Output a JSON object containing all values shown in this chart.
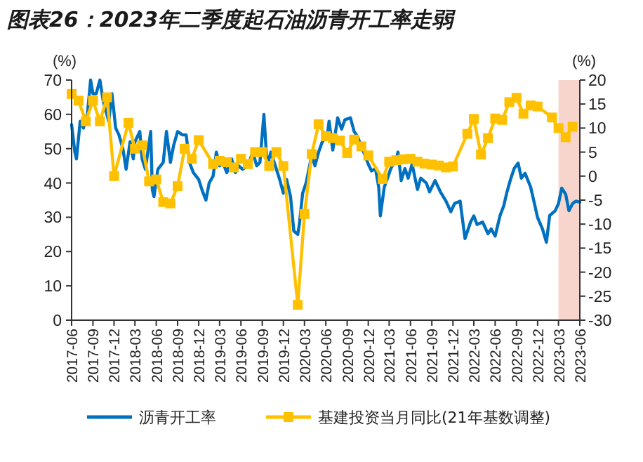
{
  "chart_data": {
    "type": "line",
    "title": "图表26：2023年二季度起石油沥青开工率走弱",
    "ylabel": "(%)",
    "y2label": "(%)",
    "xlim": [
      "2017-06",
      "2023-06"
    ],
    "xticks": [
      "2017-06",
      "2017-09",
      "2017-12",
      "2018-03",
      "2018-06",
      "2018-09",
      "2018-12",
      "2019-03",
      "2019-06",
      "2019-09",
      "2019-12",
      "2020-03",
      "2020-06",
      "2020-09",
      "2020-12",
      "2021-03",
      "2021-06",
      "2021-09",
      "2021-12",
      "2022-03",
      "2022-06",
      "2022-09",
      "2022-12",
      "2023-03",
      "2023-06"
    ],
    "ylim": [
      0,
      70
    ],
    "yticks": [
      0,
      10,
      20,
      30,
      40,
      50,
      60,
      70
    ],
    "y2lim": [
      -30,
      20
    ],
    "y2ticks": [
      -30,
      -25,
      -20,
      -15,
      -10,
      -5,
      0,
      5,
      10,
      15,
      20
    ],
    "grid": false,
    "legend": "bottom",
    "bands": [
      {
        "axis": "x",
        "from": "2023-03",
        "to": "2023-06",
        "color": "#f8d5cc"
      }
    ],
    "series": [
      {
        "name": "沥青开工率",
        "color": "#0070c0",
        "marker": "none",
        "x": [
          "2017-06-01",
          "2017-06-15",
          "2017-06-22",
          "2017-07-08",
          "2017-07-22",
          "2017-08-08",
          "2017-08-22",
          "2017-09-01",
          "2017-09-15",
          "2017-10-01",
          "2017-10-15",
          "2017-11-08",
          "2017-11-22",
          "2017-12-08",
          "2017-12-22",
          "2018-01-08",
          "2018-01-22",
          "2018-02-08",
          "2018-02-22",
          "2018-03-01",
          "2018-03-22",
          "2018-04-01",
          "2018-04-15",
          "2018-05-08",
          "2018-05-15",
          "2018-05-22",
          "2018-06-08",
          "2018-07-01",
          "2018-07-15",
          "2018-08-01",
          "2018-08-15",
          "2018-09-01",
          "2018-09-22",
          "2018-10-08",
          "2018-10-22",
          "2018-11-08",
          "2018-12-01",
          "2018-12-15",
          "2019-01-01",
          "2019-01-15",
          "2019-02-01",
          "2019-02-15",
          "2019-03-01",
          "2019-03-15",
          "2019-04-01",
          "2019-04-22",
          "2019-05-08",
          "2019-05-22",
          "2019-06-08",
          "2019-07-01",
          "2019-07-22",
          "2019-08-08",
          "2019-08-22",
          "2019-09-08",
          "2019-09-22",
          "2019-10-08",
          "2019-11-01",
          "2019-11-15",
          "2019-12-01",
          "2019-12-15",
          "2020-01-01",
          "2020-01-15",
          "2020-02-01",
          "2020-02-08",
          "2020-02-22",
          "2020-03-08",
          "2020-04-01",
          "2020-04-15",
          "2020-05-01",
          "2020-05-15",
          "2020-06-08",
          "2020-06-15",
          "2020-07-01",
          "2020-07-22",
          "2020-08-08",
          "2020-08-22",
          "2020-09-15",
          "2020-10-01",
          "2020-10-15",
          "2020-11-15",
          "2020-12-01",
          "2020-12-15",
          "2021-01-01",
          "2021-01-15",
          "2021-01-22",
          "2021-02-08",
          "2021-02-22",
          "2021-03-08",
          "2021-04-01",
          "2021-04-08",
          "2021-04-22",
          "2021-05-08",
          "2021-05-22",
          "2021-06-08",
          "2021-07-01",
          "2021-07-15",
          "2021-08-08",
          "2021-08-22",
          "2021-09-15",
          "2021-10-08",
          "2021-11-01",
          "2021-11-22",
          "2021-12-08",
          "2022-01-01",
          "2022-01-22",
          "2022-02-15",
          "2022-03-01",
          "2022-03-15",
          "2022-04-08",
          "2022-05-01",
          "2022-05-15",
          "2022-06-01",
          "2022-06-22",
          "2022-07-08",
          "2022-07-22",
          "2022-08-08",
          "2022-08-22",
          "2022-09-08",
          "2022-09-22",
          "2022-10-08",
          "2022-11-01",
          "2022-11-15",
          "2022-12-01",
          "2022-12-22",
          "2023-01-08",
          "2023-01-22",
          "2023-02-15",
          "2023-03-01",
          "2023-03-15",
          "2023-04-01",
          "2023-04-15",
          "2023-05-01",
          "2023-05-15",
          "2023-06-01"
        ],
        "values": [
          57,
          49,
          47,
          58,
          56,
          60,
          70,
          66,
          66,
          70,
          64,
          58,
          66,
          56,
          54,
          50,
          44,
          52,
          47,
          52,
          55,
          47,
          44,
          55,
          38,
          36,
          44,
          46,
          55,
          46,
          51,
          55,
          54,
          54,
          46,
          43,
          41,
          38,
          35,
          40,
          42,
          49,
          45,
          46,
          43,
          47,
          43,
          45,
          44,
          45,
          49,
          45,
          46,
          60,
          45,
          49,
          44,
          41,
          37,
          41,
          36,
          26,
          25,
          28,
          37,
          40,
          48,
          45,
          49,
          51.7,
          54.3,
          58,
          49.6,
          59,
          55.7,
          58.4,
          59,
          55,
          53.6,
          48.3,
          45.5,
          43.5,
          44.2,
          38.8,
          30.4,
          38.8,
          41.4,
          44.2,
          46.9,
          49,
          40.7,
          44.2,
          41.4,
          45.5,
          38.1,
          41.4,
          40,
          37.4,
          40.7,
          37.4,
          34.7,
          31.6,
          34,
          34.7,
          23.8,
          28.6,
          30.4,
          27.9,
          28.6,
          25.2,
          26.6,
          24.5,
          30.5,
          33.3,
          37.4,
          41.4,
          44.2,
          45.8,
          41.4,
          42.8,
          38.8,
          34.7,
          29.9,
          26.6,
          22.7,
          30.5,
          31.9,
          34,
          38.5,
          36.7,
          31.9,
          34,
          34.7,
          34.4
        ]
      },
      {
        "name": "基建投资当月同比(21年基数调整)",
        "color": "#ffc000",
        "marker": "square",
        "axis": "y2",
        "x": [
          "2017-06",
          "2017-07",
          "2017-08",
          "2017-09",
          "2017-10",
          "2017-11",
          "2017-12",
          "2018-02",
          "2018-03",
          "2018-04",
          "2018-05",
          "2018-06",
          "2018-07",
          "2018-08",
          "2018-09",
          "2018-10",
          "2018-11",
          "2018-12",
          "2019-02",
          "2019-03",
          "2019-04",
          "2019-05",
          "2019-06",
          "2019-07",
          "2019-08",
          "2019-09",
          "2019-10",
          "2019-11",
          "2019-12",
          "2020-02",
          "2020-03",
          "2020-04",
          "2020-05",
          "2020-06",
          "2020-07",
          "2020-08",
          "2020-09",
          "2020-10",
          "2020-11",
          "2020-12",
          "2021-02",
          "2021-03",
          "2021-04",
          "2021-05",
          "2021-06",
          "2021-07",
          "2021-08",
          "2021-09",
          "2021-10",
          "2021-11",
          "2021-12",
          "2022-02",
          "2022-03",
          "2022-04",
          "2022-05",
          "2022-06",
          "2022-07",
          "2022-08",
          "2022-09",
          "2022-10",
          "2022-11",
          "2022-12",
          "2023-02",
          "2023-03",
          "2023-04",
          "2023-05"
        ],
        "values": [
          17.1,
          15.7,
          11.4,
          15.7,
          11.4,
          16.4,
          0,
          11.1,
          5.7,
          6.4,
          -1.1,
          -0.7,
          -5.4,
          -5.7,
          -2.1,
          5.7,
          3.6,
          7.5,
          2.5,
          3.2,
          2.9,
          1.8,
          3.6,
          2.5,
          5,
          5,
          2.1,
          5,
          2.1,
          -26.8,
          -7.9,
          4.6,
          10.8,
          8.3,
          7.9,
          7.4,
          4.8,
          7.6,
          6.2,
          4.3,
          -0.6,
          3,
          3.3,
          3.5,
          3.6,
          3,
          2.6,
          2.4,
          2.2,
          1.8,
          2,
          8.8,
          11.9,
          4.5,
          7.9,
          12,
          11.7,
          15.4,
          16.3,
          13,
          14.7,
          14.5,
          12.2,
          10,
          8.1,
          10.3
        ]
      }
    ]
  }
}
